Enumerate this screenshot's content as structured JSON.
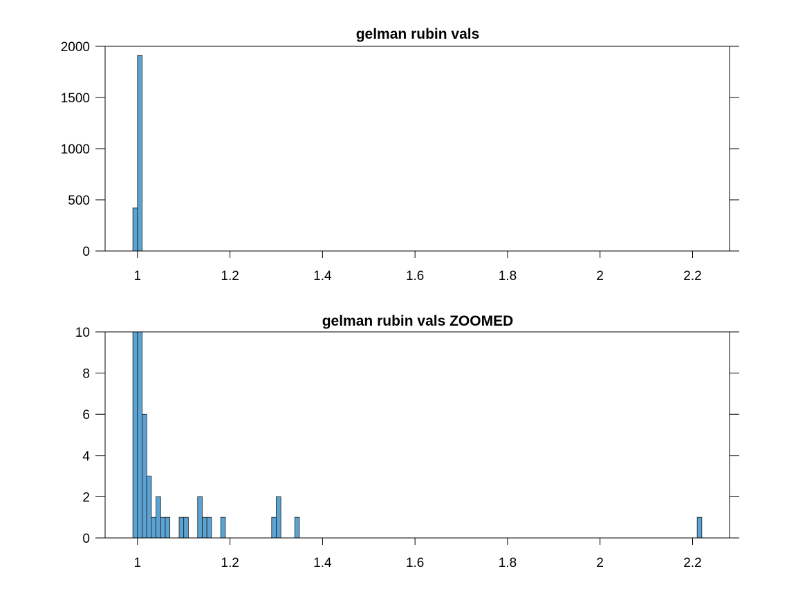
{
  "colors": {
    "bar_fill": "#5BA3D3",
    "bar_edge": "#1a1a1a",
    "axis": "#000000",
    "background": "#ffffff"
  },
  "chart_data": [
    {
      "type": "bar",
      "title": "gelman rubin vals",
      "xlabel": "",
      "ylabel": "",
      "xlim": [
        0.93,
        2.28
      ],
      "ylim": [
        0,
        2000
      ],
      "grid": false,
      "xticks": [
        1,
        1.2,
        1.4,
        1.6,
        1.8,
        2,
        2.2
      ],
      "xtick_labels": [
        "1",
        "1.2",
        "1.4",
        "1.6",
        "1.8",
        "2",
        "2.2"
      ],
      "yticks": [
        0,
        500,
        1000,
        1500,
        2000
      ],
      "ytick_labels": [
        "0",
        "500",
        "1000",
        "1500",
        "2000"
      ],
      "bin_width": 0.01,
      "bin_lefts": [
        0.99,
        1.0
      ],
      "values": [
        420,
        1910
      ]
    },
    {
      "type": "bar",
      "title": "gelman rubin vals ZOOMED",
      "xlabel": "",
      "ylabel": "",
      "xlim": [
        0.93,
        2.28
      ],
      "ylim": [
        0,
        10
      ],
      "grid": false,
      "xticks": [
        1,
        1.2,
        1.4,
        1.6,
        1.8,
        2,
        2.2
      ],
      "xtick_labels": [
        "1",
        "1.2",
        "1.4",
        "1.6",
        "1.8",
        "2",
        "2.2"
      ],
      "yticks": [
        0,
        2,
        4,
        6,
        8,
        10
      ],
      "ytick_labels": [
        "0",
        "2",
        "4",
        "6",
        "8",
        "10"
      ],
      "bin_width": 0.01,
      "bin_lefts": [
        0.99,
        1.0,
        1.01,
        1.02,
        1.03,
        1.04,
        1.05,
        1.06,
        1.09,
        1.1,
        1.13,
        1.14,
        1.15,
        1.18,
        1.29,
        1.3,
        1.34,
        2.21
      ],
      "values": [
        10,
        10,
        6,
        3,
        1,
        2,
        1,
        1,
        1,
        1,
        2,
        1,
        1,
        1,
        1,
        2,
        1,
        1
      ]
    }
  ]
}
